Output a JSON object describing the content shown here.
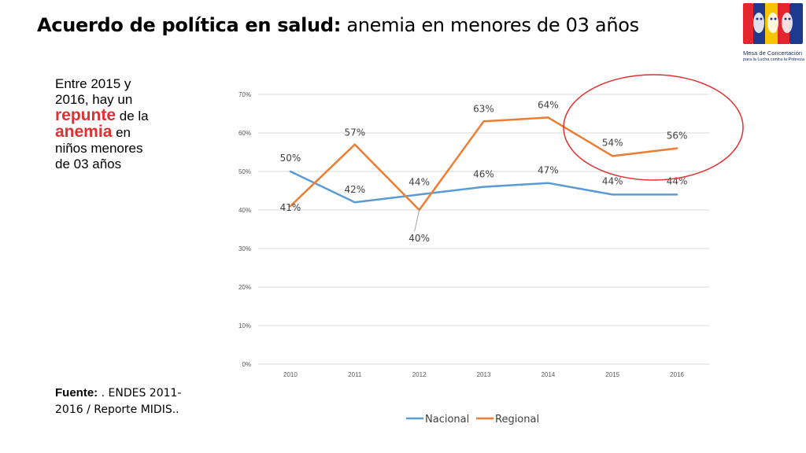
{
  "slide": {
    "title_bold": "Acuerdo de política en salud:",
    "title_rest": " anemia en menores de 03 años",
    "note": {
      "p1": "Entre 2015 y 2016, hay un ",
      "h1": "repunte",
      "p2": " de la ",
      "h2": "anemia",
      "p3": " en niños menores de 03 años"
    },
    "source_label": "Fuente:",
    "source_text": " . ENDES 2011-2016 / Reporte MIDIS..",
    "logo_line1": "Mesa de Concertación",
    "logo_line2": "para la Lucha contra la Pobreza"
  },
  "colors": {
    "nacional": "#5b9bd5",
    "regional": "#ed7d31",
    "highlight": "#e03030",
    "grid": "#d9d9d9"
  },
  "chart_data": {
    "type": "line",
    "title": "",
    "xlabel": "",
    "ylabel": "",
    "categories": [
      "2010",
      "2011",
      "2012",
      "2013",
      "2014",
      "2015",
      "2016"
    ],
    "ylim": [
      0,
      70
    ],
    "yticks": [
      0,
      10,
      20,
      30,
      40,
      50,
      60,
      70
    ],
    "ytick_labels": [
      "0%",
      "10%",
      "20%",
      "30%",
      "40%",
      "50%",
      "60%",
      "70%"
    ],
    "legend_position": "bottom",
    "series": [
      {
        "name": "Nacional",
        "values": [
          50,
          42,
          44,
          46,
          47,
          44,
          44
        ],
        "labels": [
          "50%",
          "42%",
          "44%",
          "46%",
          "47%",
          "44%",
          "44%"
        ]
      },
      {
        "name": "Regional",
        "values": [
          41,
          57,
          40,
          63,
          64,
          54,
          56
        ],
        "labels": [
          "41%",
          "57%",
          "40%",
          "63%",
          "64%",
          "54%",
          "56%"
        ]
      }
    ],
    "annotation": "circle highlighting 2015-2016 Regional values"
  }
}
